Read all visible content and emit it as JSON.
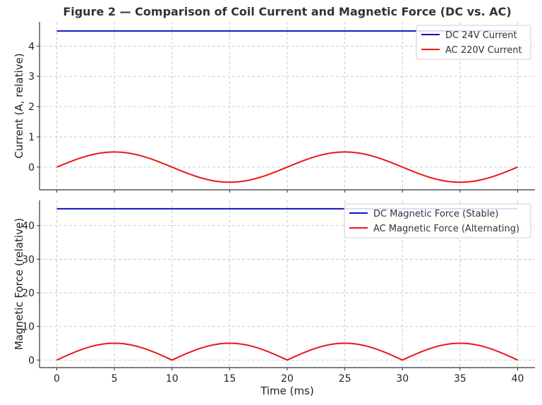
{
  "figure_title": "Figure 2 — Comparison of Coil Current and Magnetic Force (DC vs. AC)",
  "colors": {
    "dc": "#1010c8",
    "ac": "#e81818"
  },
  "chart_data": [
    {
      "type": "line",
      "xlabel": "",
      "ylabel": "Current (A, relative)",
      "xlim": [
        -1.5,
        41.5
      ],
      "ylim": [
        -0.75,
        4.8
      ],
      "xticks": [
        0,
        5,
        10,
        15,
        20,
        25,
        30,
        35,
        40
      ],
      "yticks": [
        0,
        1,
        2,
        3,
        4
      ],
      "grid": true,
      "legend": "top-right",
      "series": [
        {
          "name": "DC 24V Current",
          "color": "dc",
          "x": [
            0,
            40
          ],
          "y": [
            4.5,
            4.5
          ]
        },
        {
          "name": "AC 220V Current",
          "color": "ac",
          "x": [
            0,
            2.5,
            5,
            7.5,
            10,
            12.5,
            15,
            17.5,
            20,
            22.5,
            25,
            27.5,
            30,
            32.5,
            35,
            37.5,
            40
          ],
          "y": [
            0,
            0.354,
            0.5,
            0.354,
            0,
            -0.354,
            -0.5,
            -0.354,
            0,
            0.354,
            0.5,
            0.354,
            0,
            -0.354,
            -0.5,
            -0.354,
            0
          ]
        }
      ]
    },
    {
      "type": "line",
      "xlabel": "Time (ms)",
      "ylabel": "Magnetic Force (relative)",
      "xlim": [
        -1.5,
        41.5
      ],
      "ylim": [
        -2.25,
        47.5
      ],
      "xticks": [
        0,
        5,
        10,
        15,
        20,
        25,
        30,
        35,
        40
      ],
      "yticks": [
        0,
        10,
        20,
        30,
        40
      ],
      "grid": true,
      "legend": "top-right",
      "series": [
        {
          "name": "DC Magnetic Force (Stable)",
          "color": "dc",
          "x": [
            0,
            40
          ],
          "y": [
            45,
            45
          ]
        },
        {
          "name": "AC Magnetic Force (Alternating)",
          "color": "ac",
          "x": [
            0,
            2.5,
            5,
            7.5,
            10,
            12.5,
            15,
            17.5,
            20,
            22.5,
            25,
            27.5,
            30,
            32.5,
            35,
            37.5,
            40
          ],
          "y": [
            0,
            3.54,
            5,
            3.54,
            0,
            3.54,
            5,
            3.54,
            0,
            3.54,
            5,
            3.54,
            0,
            3.54,
            5,
            3.54,
            0
          ]
        }
      ]
    }
  ]
}
